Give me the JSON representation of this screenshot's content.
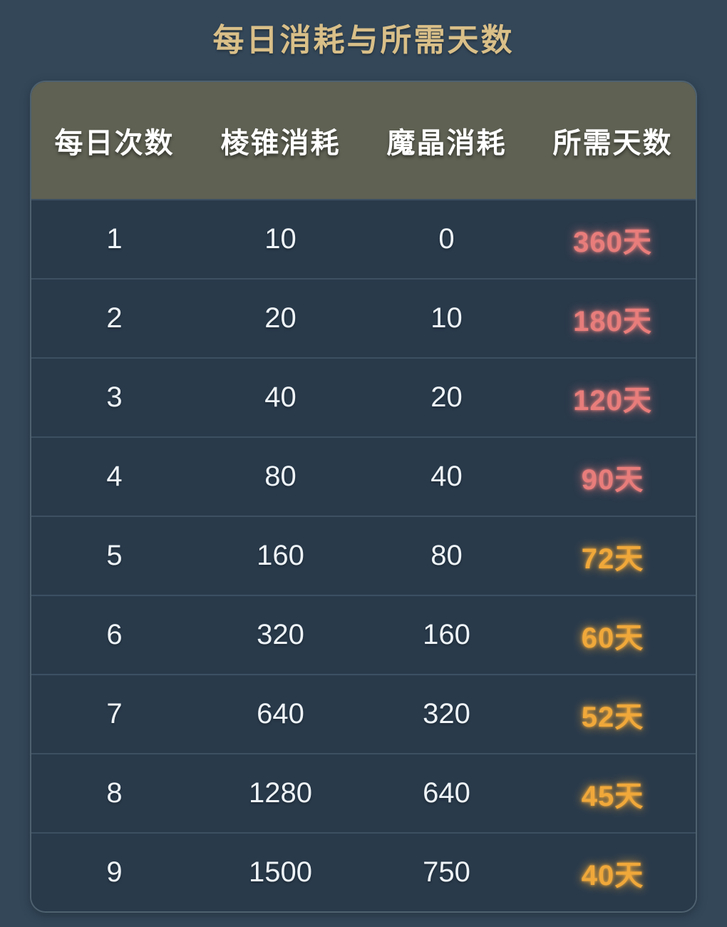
{
  "page": {
    "title": "每日消耗与所需天数"
  },
  "colors": {
    "page_bg": "#334759",
    "row_bg": "#293a4b",
    "header_bg": "#5f6153",
    "divider": "#3c5062",
    "title_gold": "#d9bf88",
    "days_red": "#e87d7b",
    "days_orange": "#f0a83a"
  },
  "chart_data": {
    "type": "table",
    "title": "每日消耗与所需天数",
    "columns": [
      "每日次数",
      "棱锥消耗",
      "魔晶消耗",
      "所需天数"
    ],
    "rows": [
      [
        "1",
        "10",
        "0",
        "360天"
      ],
      [
        "2",
        "20",
        "10",
        "180天"
      ],
      [
        "3",
        "40",
        "20",
        "120天"
      ],
      [
        "4",
        "80",
        "40",
        "90天"
      ],
      [
        "5",
        "160",
        "80",
        "72天"
      ],
      [
        "6",
        "320",
        "160",
        "60天"
      ],
      [
        "7",
        "640",
        "320",
        "52天"
      ],
      [
        "8",
        "1280",
        "640",
        "45天"
      ],
      [
        "9",
        "1500",
        "750",
        "40天"
      ]
    ],
    "day_colors": [
      "#e87d7b",
      "#e87d7b",
      "#e87d7b",
      "#e87d7b",
      "#f0a83a",
      "#f0a83a",
      "#f0a83a",
      "#f0a83a",
      "#f0a83a"
    ]
  }
}
